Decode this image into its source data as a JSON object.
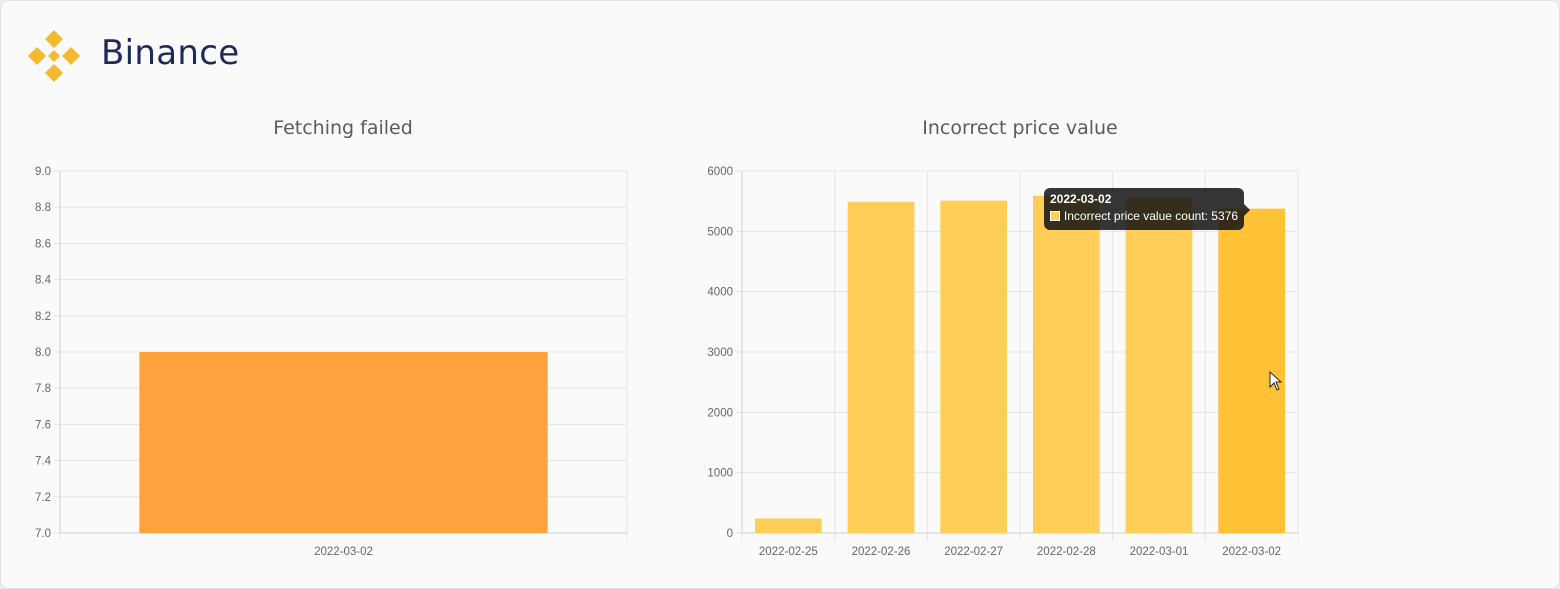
{
  "brand": {
    "name": "Binance",
    "logo_icon": "binance-logo-icon",
    "logo_color": "#f3ba2f"
  },
  "colors": {
    "fetch_bar": "#ffa23e",
    "price_bar": "#ffce57",
    "price_bar_active": "#ffc136",
    "grid": "#e5e5e5"
  },
  "chart_data": [
    {
      "type": "bar",
      "title": "Fetching failed",
      "categories": [
        "2022-03-02"
      ],
      "values": [
        8.0
      ],
      "ylim": [
        7.0,
        9.0
      ],
      "yticks": [
        "9.0",
        "8.8",
        "8.6",
        "8.4",
        "8.2",
        "8.0",
        "7.8",
        "7.6",
        "7.4",
        "7.2",
        "7.0"
      ],
      "xlabel": "",
      "ylabel": "",
      "grid": true,
      "legend": "none"
    },
    {
      "type": "bar",
      "title": "Incorrect price value",
      "categories": [
        "2022-02-25",
        "2022-02-26",
        "2022-02-27",
        "2022-02-28",
        "2022-03-01",
        "2022-03-02"
      ],
      "values": [
        240,
        5490,
        5510,
        5590,
        5550,
        5376
      ],
      "ylim": [
        0,
        6000
      ],
      "yticks": [
        "6000",
        "5000",
        "4000",
        "3000",
        "2000",
        "1000",
        "0"
      ],
      "xlabel": "",
      "ylabel": "",
      "grid": true,
      "legend": "none",
      "tooltip": {
        "title": "2022-03-02",
        "label": "Incorrect price value count: 5376",
        "category_index": 5
      }
    }
  ]
}
